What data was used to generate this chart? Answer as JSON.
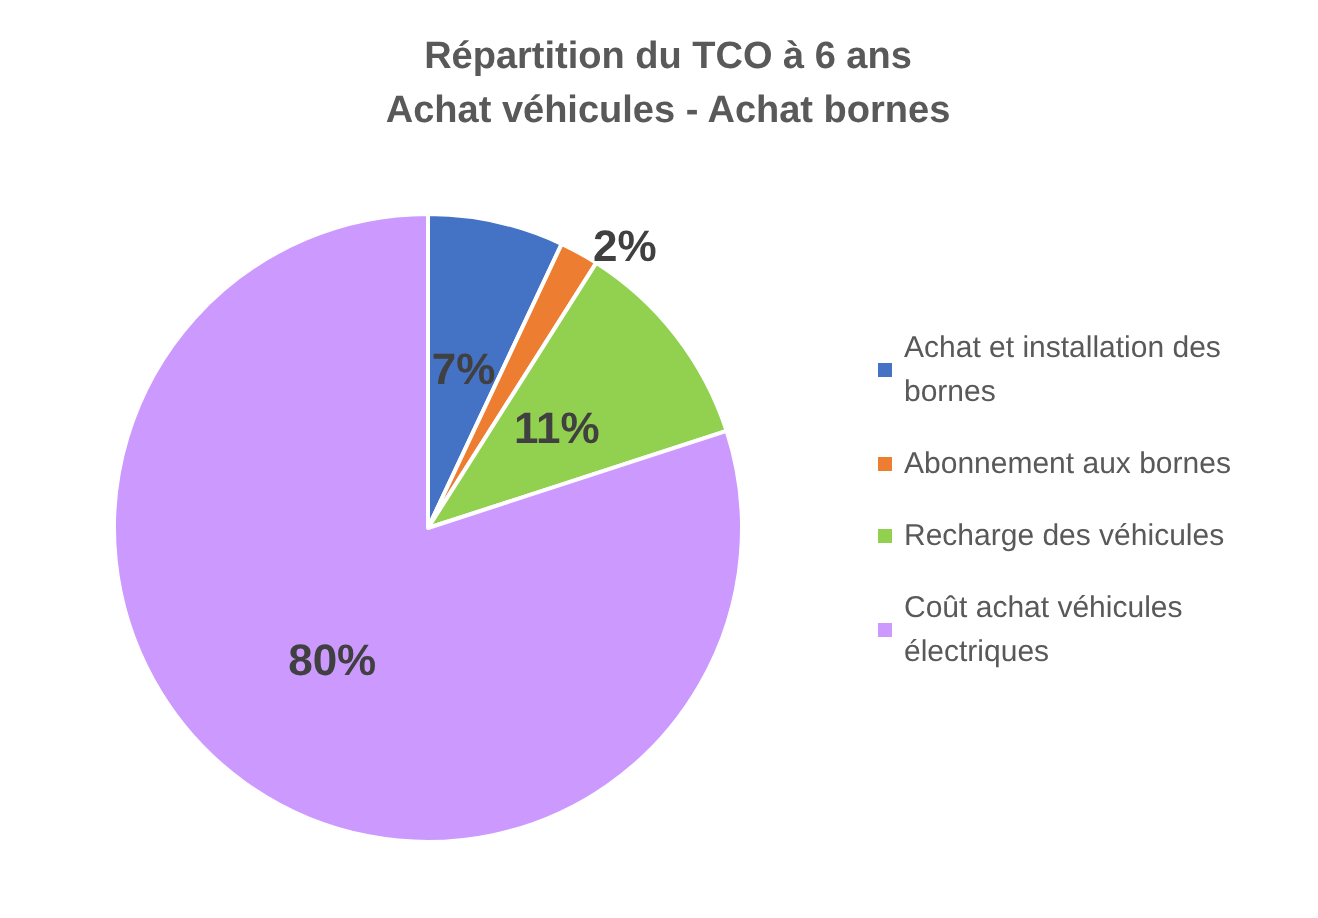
{
  "chart_data": {
    "type": "pie",
    "title": "Répartition du TCO à 6 ans\nAchat véhicules - Achat bornes",
    "categories": [
      "Achat et installation des bornes",
      "Abonnement aux bornes",
      "Recharge des véhicules",
      "Coût achat véhicules électriques"
    ],
    "values": [
      7,
      2,
      11,
      80
    ],
    "colors": [
      "#4472c4",
      "#ed7d31",
      "#92d050",
      "#cc99ff"
    ],
    "value_labels": [
      "7%",
      "2%",
      "11%",
      "80%"
    ],
    "legend": "right"
  }
}
